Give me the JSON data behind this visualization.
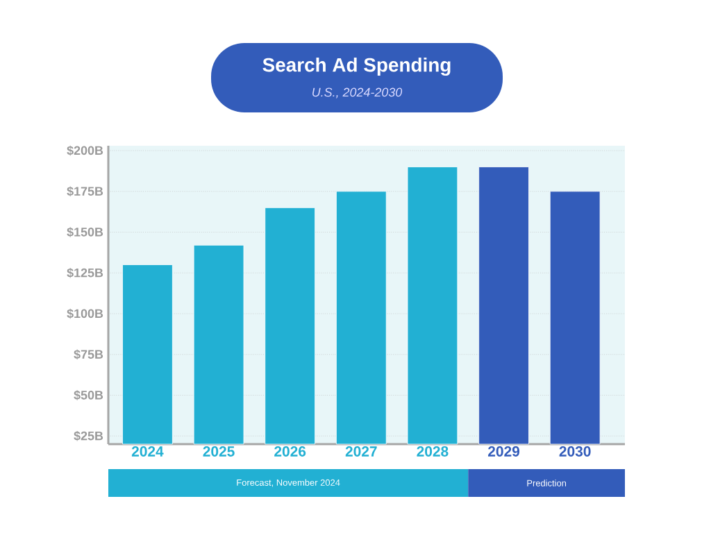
{
  "chart_data": {
    "type": "bar",
    "title": "Search Ad Spending",
    "subtitle": "U.S., 2024-2030",
    "categories": [
      "2024",
      "2025",
      "2026",
      "2027",
      "2028",
      "2029",
      "2030"
    ],
    "values": [
      130,
      142,
      165,
      175,
      190,
      190,
      175
    ],
    "colors": [
      "#22b0d3",
      "#22b0d3",
      "#22b0d3",
      "#22b0d3",
      "#22b0d3",
      "#335cba",
      "#335cba"
    ],
    "ylim": [
      20,
      203
    ],
    "yticks": [
      {
        "value": 25,
        "label": "$25B"
      },
      {
        "value": 50,
        "label": "$50B"
      },
      {
        "value": 75,
        "label": "$75B"
      },
      {
        "value": 100,
        "label": "$100B"
      },
      {
        "value": 125,
        "label": "$125B"
      },
      {
        "value": 150,
        "label": "$150B"
      },
      {
        "value": 175,
        "label": "$175B"
      },
      {
        "value": 200,
        "label": "$200B"
      }
    ],
    "grid": "y",
    "annotations": [
      "Forecast, November 2024",
      "Prediction"
    ]
  }
}
